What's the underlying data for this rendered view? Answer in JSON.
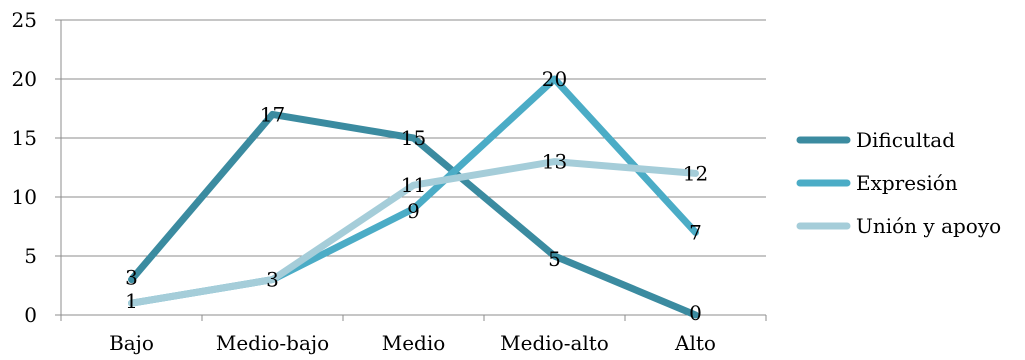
{
  "chart_data": {
    "type": "line",
    "categories": [
      "Bajo",
      "Medio-bajo",
      "Medio",
      "Medio-alto",
      "Alto"
    ],
    "ylim": [
      0,
      25
    ],
    "yticks": [
      0,
      5,
      10,
      15,
      20,
      25
    ],
    "grid": true,
    "legend_position": "right",
    "series": [
      {
        "name": "Dificultad",
        "values": [
          3,
          17,
          15,
          5,
          0
        ],
        "color": "#3b8ba0"
      },
      {
        "name": "Expresión",
        "values": [
          1,
          3,
          9,
          20,
          7
        ],
        "color": "#4bacc6"
      },
      {
        "name": "Unión y apoyo",
        "values": [
          1,
          3,
          11,
          13,
          12
        ],
        "color": "#a5cdd9"
      }
    ],
    "title": "",
    "xlabel": "",
    "ylabel": ""
  }
}
